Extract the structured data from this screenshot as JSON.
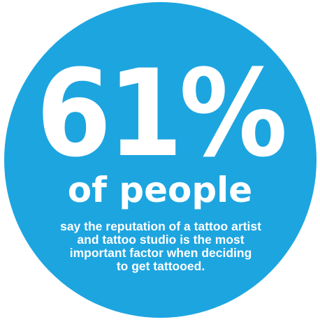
{
  "circle": {
    "color": "#1da5e0"
  },
  "stat": {
    "value": "61%",
    "subject": "of people"
  },
  "caption": {
    "lines": [
      "say the reputation of a tattoo artist",
      "and tattoo studio is the most",
      "important factor when deciding",
      "to get tattooed."
    ]
  }
}
